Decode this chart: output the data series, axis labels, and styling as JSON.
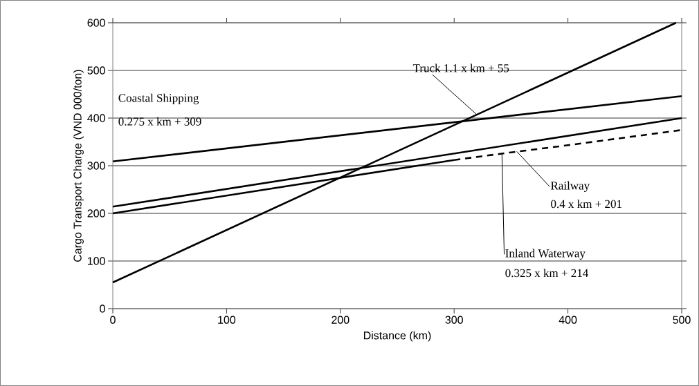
{
  "chart_data": {
    "type": "line",
    "xlabel": "Distance (km)",
    "ylabel": "Cargo Transport Charge (VND 000/ton)",
    "xlim": [
      0,
      500
    ],
    "ylim": [
      0,
      600
    ],
    "xticks": [
      0,
      100,
      200,
      300,
      400,
      500
    ],
    "yticks": [
      0,
      100,
      200,
      300,
      400,
      500,
      600
    ],
    "grid": "y",
    "marker": "none",
    "series": [
      {
        "color": "#000000",
        "x": [
          0,
          495
        ],
        "values": [
          55,
          600
        ],
        "line_style": "solid"
      },
      {
        "color": "#000000",
        "x": [
          0,
          500
        ],
        "values": [
          309,
          446
        ],
        "line_style": "solid"
      },
      {
        "color": "#000000",
        "x": [
          0,
          500
        ],
        "values": [
          214,
          400
        ],
        "line_style": "solid"
      },
      {
        "color": "#000000",
        "x": [
          0,
          300
        ],
        "values": [
          200,
          312
        ],
        "line_style": "solid"
      },
      {
        "color": "#000000",
        "x": [
          300,
          350,
          400,
          500
        ],
        "values": [
          312,
          328,
          343,
          375
        ],
        "line_style": "dashed"
      }
    ],
    "annotations": [
      {
        "text": "Truck 1.1 x km + 55",
        "x": 320,
        "y": 407
      },
      "Coastal Shipping",
      "0.275 x km + 309",
      {
        "text": "Railway",
        "x": 355,
        "y": 330
      },
      "0.4 x km + 201",
      {
        "text": "Inland Waterway",
        "x": 342,
        "y": 326
      },
      "0.325 x km + 214"
    ]
  }
}
